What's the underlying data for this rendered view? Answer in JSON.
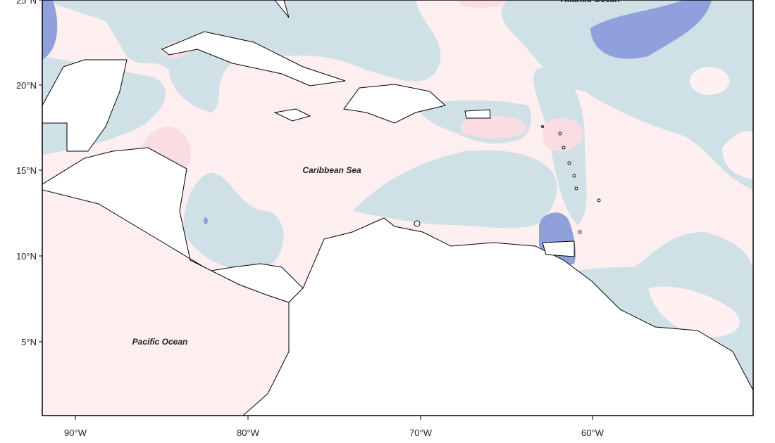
{
  "map": {
    "lat_labels": [
      "25°N",
      "20°N",
      "15°N",
      "10°N",
      "5°N"
    ],
    "lon_labels": [
      "90°W",
      "80°W",
      "70°W",
      "60°W"
    ],
    "regions": [
      "Atlantic Ocean",
      "Caribbean Sea",
      "Pacific Ocean"
    ]
  }
}
